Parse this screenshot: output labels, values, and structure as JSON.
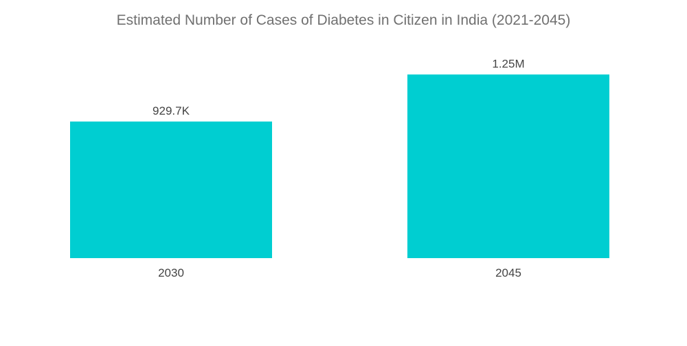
{
  "chart_data": {
    "type": "bar",
    "title": "Estimated Number of Cases of Diabetes in Citizen in India (2021-2045)",
    "categories": [
      "2030",
      "2045"
    ],
    "values": [
      929700,
      1250000
    ],
    "data_labels": [
      "929.7K",
      "1.25M"
    ],
    "xlabel": "",
    "ylabel": "",
    "ylim": [
      0,
      1570000
    ],
    "grid": false,
    "legend": "none",
    "bar_color": "#00CED1"
  }
}
